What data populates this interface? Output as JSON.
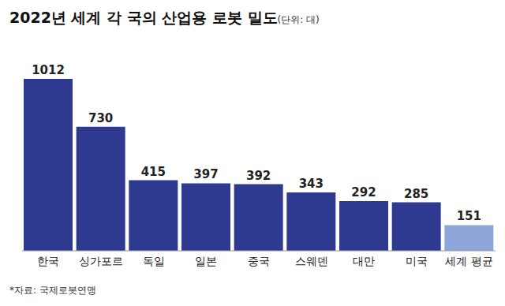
{
  "chart_data": {
    "type": "bar",
    "title": "2022년 세계 각 국의 산업용 로봇 밀도",
    "subtitle": "(단위: 대)",
    "source": "*자료: 국제로봇연맹",
    "categories": [
      "한국",
      "싱가포르",
      "독일",
      "일본",
      "중국",
      "스웨덴",
      "대만",
      "미국",
      "세계 평균"
    ],
    "values": [
      1012,
      730,
      415,
      397,
      392,
      343,
      292,
      285,
      151
    ],
    "colors": [
      "#2e3990",
      "#2e3990",
      "#2e3990",
      "#2e3990",
      "#2e3990",
      "#2e3990",
      "#2e3990",
      "#2e3990",
      "#8fa6da"
    ],
    "ylim": [
      0,
      1100
    ],
    "data_labels": true,
    "tick_labels": "x",
    "grid": false
  }
}
